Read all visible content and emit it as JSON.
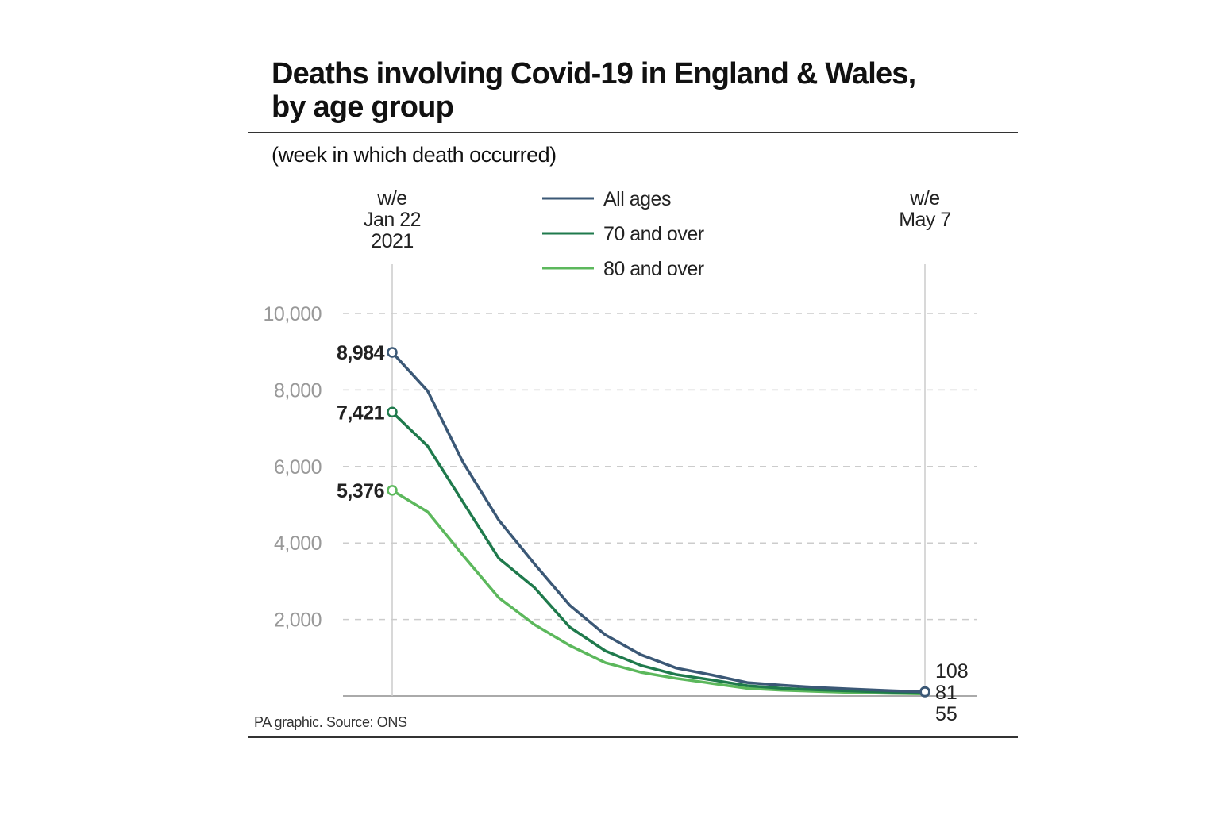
{
  "title_line1": "Deaths involving Covid-19 in England & Wales,",
  "title_line2": "by age group",
  "subtitle": "(week in which death occurred)",
  "source": "PA graphic. Source: ONS",
  "chart_data": {
    "type": "line",
    "title": "Deaths involving Covid-19 in England & Wales, by age group",
    "subtitle": "(week in which death occurred)",
    "x": [
      "2021-01-22",
      "2021-01-29",
      "2021-02-05",
      "2021-02-12",
      "2021-02-19",
      "2021-02-26",
      "2021-03-05",
      "2021-03-12",
      "2021-03-19",
      "2021-03-26",
      "2021-04-02",
      "2021-04-09",
      "2021-04-16",
      "2021-04-23",
      "2021-04-30",
      "2021-05-07"
    ],
    "x_labels": [
      {
        "lines": [
          "w/e",
          "Jan 22",
          "2021"
        ]
      },
      {
        "lines": [
          "w/e",
          "May 7"
        ]
      }
    ],
    "ylim": [
      0,
      10000
    ],
    "yticks": [
      "2,000",
      "4,000",
      "6,000",
      "8,000",
      "10,000"
    ],
    "ytick_values": [
      2000,
      4000,
      6000,
      8000,
      10000
    ],
    "grid": "horizontal dashed",
    "legend_placement": "top-center",
    "series": [
      {
        "name": "All ages",
        "color": "#3b5876",
        "values": [
          8984,
          7970,
          6100,
          4600,
          3460,
          2370,
          1600,
          1080,
          730,
          550,
          350,
          280,
          220,
          180,
          140,
          108
        ],
        "start_label": "8,984",
        "end_label": "108"
      },
      {
        "name": "70 and over",
        "color": "#1f7a4c",
        "values": [
          7421,
          6530,
          5060,
          3600,
          2840,
          1800,
          1180,
          800,
          560,
          420,
          270,
          200,
          160,
          130,
          100,
          81
        ],
        "start_label": "7,421",
        "end_label": "81"
      },
      {
        "name": "80 and over",
        "color": "#5cb85c",
        "values": [
          5376,
          4810,
          3670,
          2570,
          1870,
          1320,
          870,
          620,
          460,
          330,
          200,
          150,
          120,
          90,
          70,
          55
        ],
        "start_label": "5,376",
        "end_label": "55"
      }
    ]
  }
}
